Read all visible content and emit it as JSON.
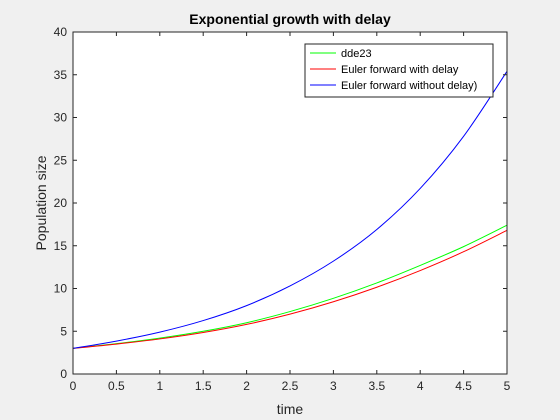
{
  "chart_data": {
    "type": "line",
    "title": "Exponential growth with delay",
    "xlabel": "time",
    "ylabel": "Population size",
    "xlim": [
      0,
      5
    ],
    "ylim": [
      0,
      40
    ],
    "xticks": [
      0,
      0.5,
      1,
      1.5,
      2,
      2.5,
      3,
      3.5,
      4,
      4.5,
      5
    ],
    "yticks": [
      0,
      5,
      10,
      15,
      20,
      25,
      30,
      35,
      40
    ],
    "grid": false,
    "legend_position": "top-right",
    "x": [
      0,
      0.5,
      1,
      1.5,
      2,
      2.5,
      3,
      3.5,
      4,
      4.5,
      5
    ],
    "series": [
      {
        "name": "dde23",
        "color": "#00ff00",
        "values": [
          3.0,
          3.55,
          4.2,
          5.0,
          6.0,
          7.3,
          8.85,
          10.65,
          12.7,
          14.9,
          17.4
        ]
      },
      {
        "name": "Euler forward with delay",
        "color": "#ff0000",
        "values": [
          3.0,
          3.5,
          4.1,
          4.85,
          5.8,
          7.0,
          8.45,
          10.15,
          12.1,
          14.3,
          16.8
        ]
      },
      {
        "name": "Euler forward without delay)",
        "color": "#0000ff",
        "values": [
          3.0,
          3.85,
          4.9,
          6.25,
          8.0,
          10.3,
          13.2,
          16.9,
          21.7,
          27.8,
          35.4
        ]
      }
    ]
  }
}
